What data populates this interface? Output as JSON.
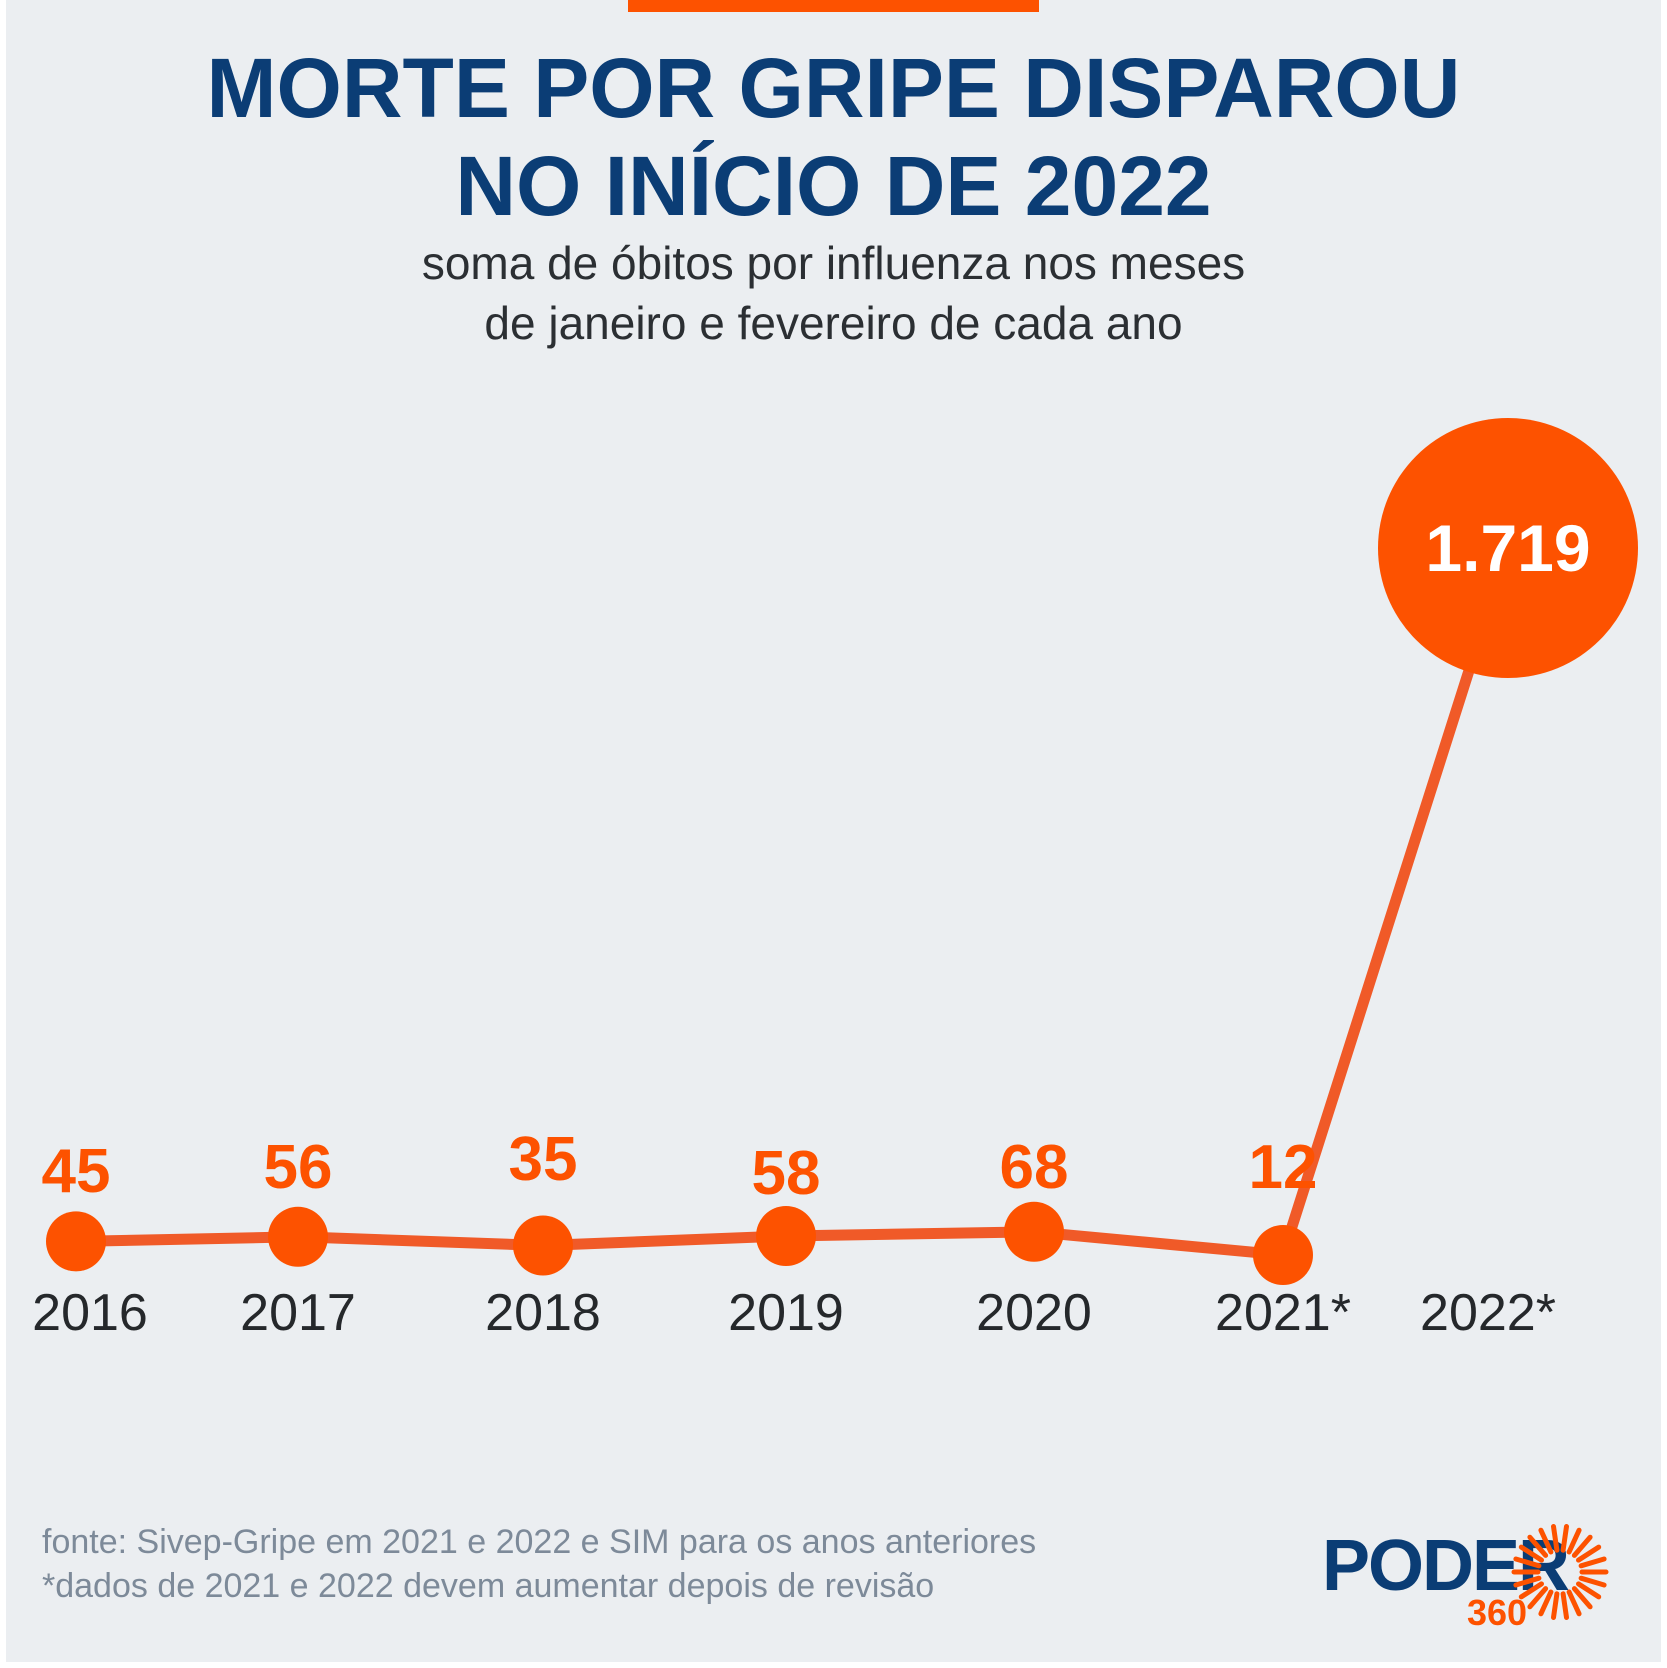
{
  "title": {
    "line1": "MORTE POR GRIPE DISPAROU",
    "line2": "NO INÍCIO DE 2022"
  },
  "subtitle": {
    "line1": "soma de óbitos por influenza nos meses",
    "line2": "de janeiro e fevereiro de cada ano"
  },
  "colors": {
    "accent": "#fd5200",
    "line": "#f05a28",
    "title": "#0b3d75",
    "background": "#ebeef1",
    "footnote": "#7d8a99"
  },
  "chart_data": {
    "type": "line",
    "title": "MORTE POR GRIPE DISPAROU NO INÍCIO DE 2022",
    "subtitle": "soma de óbitos por influenza nos meses de janeiro e fevereiro de cada ano",
    "xlabel": "",
    "ylabel": "",
    "grid": false,
    "categories": [
      "2016",
      "2017",
      "2018",
      "2019",
      "2020",
      "2021*",
      "2022*"
    ],
    "values": [
      45,
      56,
      35,
      58,
      68,
      12,
      1719
    ],
    "value_labels": [
      "45",
      "56",
      "35",
      "58",
      "68",
      "12",
      "1.719"
    ],
    "ylim": [
      0,
      1719
    ]
  },
  "footnotes": {
    "source": "fonte: Sivep-Gripe em 2021 e 2022 e SIM para os anos anteriores",
    "note": "*dados de 2021 e 2022 devem aumentar depois de revisão"
  },
  "logo": {
    "word": "PODER",
    "number": "360"
  }
}
